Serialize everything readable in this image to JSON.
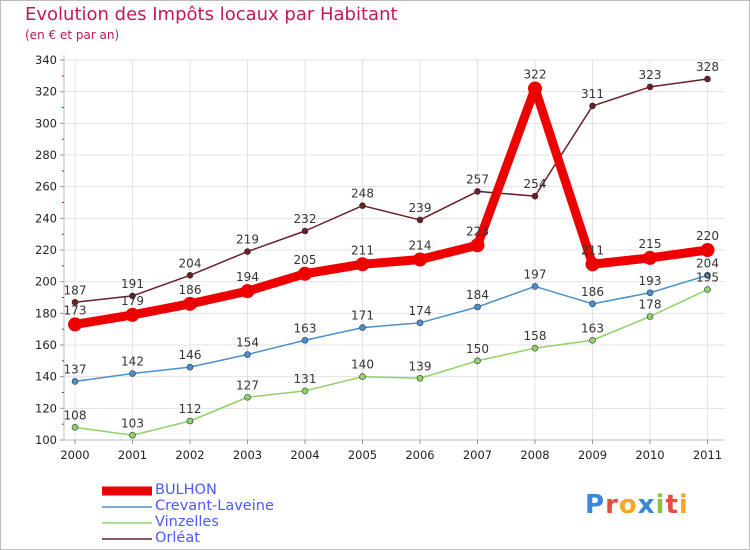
{
  "title": "Evolution des Impôts locaux par Habitant",
  "subtitle": "(en € et par an)",
  "logo": "Proxiti",
  "chart_data": {
    "type": "line",
    "title": "Evolution des Impôts locaux par Habitant",
    "subtitle": "(en € et par an)",
    "xlabel": "",
    "ylabel": "",
    "ylim": [
      100,
      340
    ],
    "yticks": [
      100,
      120,
      140,
      160,
      180,
      200,
      220,
      240,
      260,
      280,
      300,
      320,
      340
    ],
    "x": [
      "2000",
      "2001",
      "2002",
      "2003",
      "2004",
      "2005",
      "2006",
      "2007",
      "2008",
      "2009",
      "2010",
      "2011"
    ],
    "legend_position": "bottom-left",
    "series": [
      {
        "name": "Orléat",
        "color": "#6b1e28",
        "values": [
          187,
          191,
          204,
          219,
          232,
          248,
          239,
          257,
          254,
          311,
          323,
          328
        ]
      },
      {
        "name": "Vinzelles",
        "color": "#8fd16a",
        "values": [
          108,
          103,
          112,
          127,
          131,
          140,
          139,
          150,
          158,
          163,
          178,
          195
        ]
      },
      {
        "name": "Crevant-Laveine",
        "color": "#4a90d0",
        "values": [
          137,
          142,
          146,
          154,
          163,
          171,
          174,
          184,
          197,
          186,
          193,
          204
        ]
      },
      {
        "name": "BULHON",
        "color": "#ee0000",
        "values": [
          173,
          179,
          186,
          194,
          205,
          211,
          214,
          223,
          322,
          211,
          215,
          220
        ]
      }
    ],
    "legend": [
      "BULHON",
      "Crevant-Laveine",
      "Vinzelles",
      "Orléat"
    ]
  }
}
